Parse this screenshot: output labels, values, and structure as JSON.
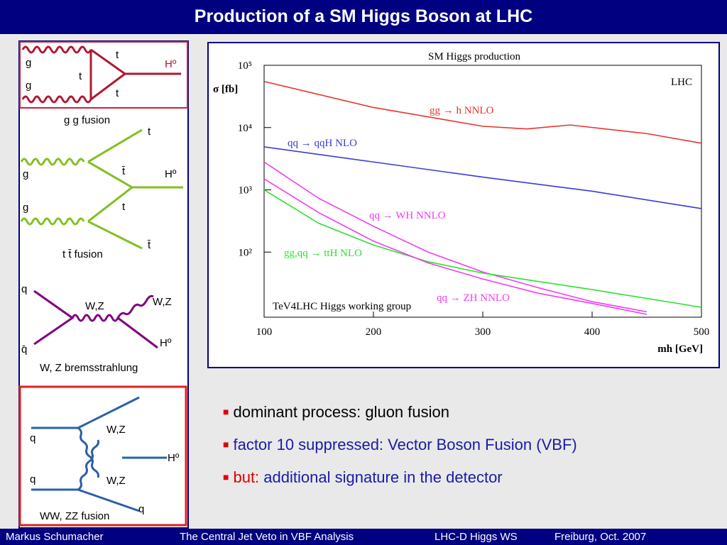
{
  "header": {
    "title": "Production of a SM Higgs Boson at LHC"
  },
  "diagrams": [
    {
      "labels": [
        "g",
        "g",
        "t",
        "t",
        "t",
        "Hº"
      ],
      "caption": "g g fusion"
    },
    {
      "labels": [
        "g",
        "g",
        "t",
        "t̄",
        "t",
        "t̄",
        "Hº"
      ],
      "caption": "t t̄ fusion"
    },
    {
      "labels": [
        "q",
        "q̄",
        "W,Z",
        "W,Z",
        "Hº"
      ],
      "caption": "W, Z bremsstrahlung"
    },
    {
      "labels": [
        "q",
        "q",
        "W,Z",
        "W,Z",
        "Hº",
        "q"
      ],
      "caption": "WW, ZZ fusion"
    }
  ],
  "chart_data": {
    "type": "line",
    "title": "SM Higgs production",
    "xlabel": "mh [GeV]",
    "ylabel": "σ [fb]",
    "annotations": [
      "LHC",
      "TeV4LHC Higgs working group"
    ],
    "log_y": true,
    "xlim": [
      100,
      500
    ],
    "ylim": [
      10,
      100000
    ],
    "xticks": [
      100,
      200,
      300,
      400,
      500
    ],
    "yticks": [
      {
        "value": 100,
        "label": "10²"
      },
      {
        "value": 1000,
        "label": "10³"
      },
      {
        "value": 10000,
        "label": "10⁴"
      },
      {
        "value": 100000,
        "label": "10⁵"
      }
    ],
    "series": [
      {
        "name": "gg → h  NNLO",
        "color": "#e8342c",
        "x": [
          100,
          200,
          300,
          340,
          380,
          450,
          500
        ],
        "values": [
          55000,
          21000,
          10500,
          9500,
          11000,
          8000,
          5600
        ]
      },
      {
        "name": "qq → qqH  NLO",
        "color": "#3a3ad8",
        "x": [
          100,
          200,
          300,
          400,
          500
        ],
        "values": [
          4900,
          2800,
          1600,
          950,
          500
        ]
      },
      {
        "name": "qq → WH  NNLO",
        "color": "#f03cf0",
        "x": [
          100,
          150,
          200,
          250,
          300,
          350,
          400,
          450
        ],
        "values": [
          2800,
          730,
          260,
          100,
          48,
          27,
          16,
          11
        ]
      },
      {
        "name": "gg,qq → ttH  NLO",
        "color": "#30e030",
        "x": [
          100,
          150,
          200,
          250,
          300,
          400,
          500
        ],
        "values": [
          1000,
          290,
          130,
          70,
          46,
          25,
          13
        ]
      },
      {
        "name": "qq → ZH  NNLO",
        "color": "#f03cf0",
        "x": [
          100,
          150,
          200,
          250,
          300,
          350,
          400,
          450
        ],
        "values": [
          1500,
          430,
          150,
          67,
          37,
          22,
          15,
          10
        ]
      }
    ]
  },
  "bullets": [
    {
      "text": "dominant process: gluon fusion"
    },
    {
      "text": "factor 10 suppressed: Vector Boson Fusion (VBF)"
    },
    {
      "prefix": "but:",
      "text": "additional signature in the detector"
    }
  ],
  "footer": [
    "Markus  Schumacher",
    "The Central Jet Veto in VBF Analysis",
    "LHC-D Higgs WS",
    "Freiburg, Oct. 2007"
  ]
}
